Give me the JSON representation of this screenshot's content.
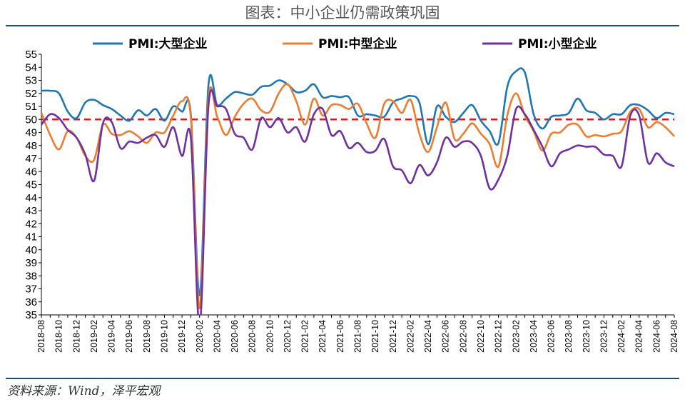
{
  "title": "图表：中小企业仍需政策巩固",
  "source": "资料来源：Wind，泽平宏观",
  "chart_data": {
    "type": "line",
    "ylim": [
      35,
      55
    ],
    "yticks": [
      35,
      36,
      37,
      38,
      39,
      40,
      41,
      42,
      43,
      44,
      45,
      46,
      47,
      48,
      49,
      50,
      51,
      52,
      53,
      54,
      55
    ],
    "x": [
      "2018-08",
      "2018-09",
      "2018-10",
      "2018-11",
      "2018-12",
      "2019-01",
      "2019-02",
      "2019-03",
      "2019-04",
      "2019-05",
      "2019-06",
      "2019-07",
      "2019-08",
      "2019-09",
      "2019-10",
      "2019-11",
      "2019-12",
      "2020-01",
      "2020-02",
      "2020-03",
      "2020-04",
      "2020-05",
      "2020-06",
      "2020-07",
      "2020-08",
      "2020-09",
      "2020-10",
      "2020-11",
      "2020-12",
      "2021-01",
      "2021-02",
      "2021-03",
      "2021-04",
      "2021-05",
      "2021-06",
      "2021-07",
      "2021-08",
      "2021-09",
      "2021-10",
      "2021-11",
      "2021-12",
      "2022-01",
      "2022-02",
      "2022-03",
      "2022-04",
      "2022-05",
      "2022-06",
      "2022-07",
      "2022-08",
      "2022-09",
      "2022-10",
      "2022-11",
      "2022-12",
      "2023-01",
      "2023-02",
      "2023-03",
      "2023-04",
      "2023-05",
      "2023-06",
      "2023-07",
      "2023-08",
      "2023-09",
      "2023-10",
      "2023-11",
      "2023-12",
      "2024-01",
      "2024-02",
      "2024-03",
      "2024-04",
      "2024-05",
      "2024-06",
      "2024-07",
      "2024-08"
    ],
    "xtick_labels": [
      "2018-08",
      "2018-10",
      "2018-12",
      "2019-02",
      "2019-04",
      "2019-06",
      "2019-08",
      "2019-10",
      "2019-12",
      "2020-02",
      "2020-04",
      "2020-06",
      "2020-08",
      "2020-10",
      "2020-12",
      "2021-02",
      "2021-04",
      "2021-06",
      "2021-08",
      "2021-10",
      "2021-12",
      "2022-02",
      "2022-04",
      "2022-06",
      "2022-08",
      "2022-10",
      "2022-12",
      "2023-02",
      "2023-04",
      "2023-06",
      "2023-08",
      "2023-10",
      "2023-12",
      "2024-02",
      "2024-04",
      "2024-06",
      "2024-08"
    ],
    "reference_line": {
      "y": 50,
      "color": "#e8141c",
      "style": "dashed"
    },
    "legend_position": "top",
    "series": [
      {
        "name": "PMI:大型企业",
        "color": "#1f77b4",
        "values": [
          52.2,
          52.2,
          52.0,
          50.6,
          50.1,
          51.3,
          51.5,
          51.1,
          50.8,
          50.3,
          49.9,
          50.7,
          50.3,
          50.8,
          49.9,
          51.0,
          50.6,
          50.4,
          36.5,
          52.6,
          51.1,
          51.6,
          52.1,
          52.0,
          51.9,
          52.5,
          52.6,
          53.0,
          52.7,
          52.1,
          52.2,
          52.7,
          51.7,
          51.8,
          51.7,
          51.7,
          50.3,
          50.4,
          50.3,
          50.2,
          51.3,
          51.6,
          51.8,
          51.3,
          48.1,
          51.0,
          50.2,
          49.8,
          50.5,
          51.1,
          49.9,
          49.1,
          48.2,
          52.5,
          53.7,
          53.6,
          50.4,
          49.3,
          50.2,
          50.3,
          50.5,
          51.6,
          50.7,
          50.5,
          50.0,
          50.4,
          50.4,
          51.1,
          51.1,
          50.7,
          50.1,
          50.5,
          50.4
        ]
      },
      {
        "name": "PMI:中型企业",
        "color": "#ed7d31",
        "values": [
          50.5,
          48.8,
          47.7,
          49.1,
          48.6,
          47.2,
          46.9,
          49.6,
          48.9,
          48.8,
          49.1,
          48.7,
          48.2,
          49.0,
          49.0,
          50.3,
          51.4,
          50.1,
          35.5,
          51.6,
          50.2,
          48.8,
          50.2,
          51.2,
          51.6,
          50.7,
          50.6,
          52.0,
          52.7,
          51.4,
          49.6,
          51.6,
          50.3,
          51.1,
          51.1,
          50.8,
          51.2,
          49.7,
          48.6,
          51.2,
          51.4,
          50.5,
          51.5,
          48.9,
          47.5,
          49.4,
          51.3,
          48.5,
          48.9,
          49.7,
          48.9,
          48.1,
          46.4,
          50.3,
          52.0,
          50.3,
          49.1,
          47.6,
          48.9,
          49.0,
          49.6,
          49.6,
          48.7,
          48.8,
          48.7,
          48.9,
          49.1,
          50.6,
          50.8,
          49.4,
          49.8,
          49.4,
          48.7
        ]
      },
      {
        "name": "PMI:小型企业",
        "color": "#7030a0",
        "values": [
          49.6,
          50.4,
          50.1,
          49.2,
          48.6,
          47.3,
          45.3,
          49.7,
          49.8,
          47.8,
          48.3,
          48.2,
          48.6,
          48.8,
          47.9,
          49.4,
          47.2,
          48.6,
          34.1,
          51.0,
          51.0,
          50.8,
          48.9,
          48.6,
          47.7,
          50.1,
          49.4,
          50.1,
          49.0,
          49.4,
          48.3,
          50.4,
          50.8,
          48.8,
          49.1,
          47.8,
          48.2,
          47.5,
          47.6,
          48.5,
          46.4,
          46.1,
          45.1,
          46.5,
          45.7,
          46.7,
          48.6,
          47.9,
          48.3,
          48.2,
          47.2,
          44.7,
          45.4,
          47.2,
          50.8,
          50.4,
          49.2,
          47.9,
          46.4,
          47.4,
          47.7,
          48.0,
          47.9,
          47.9,
          47.3,
          47.2,
          46.4,
          50.3,
          50.3,
          46.7,
          47.4,
          46.7,
          46.4
        ]
      }
    ]
  }
}
